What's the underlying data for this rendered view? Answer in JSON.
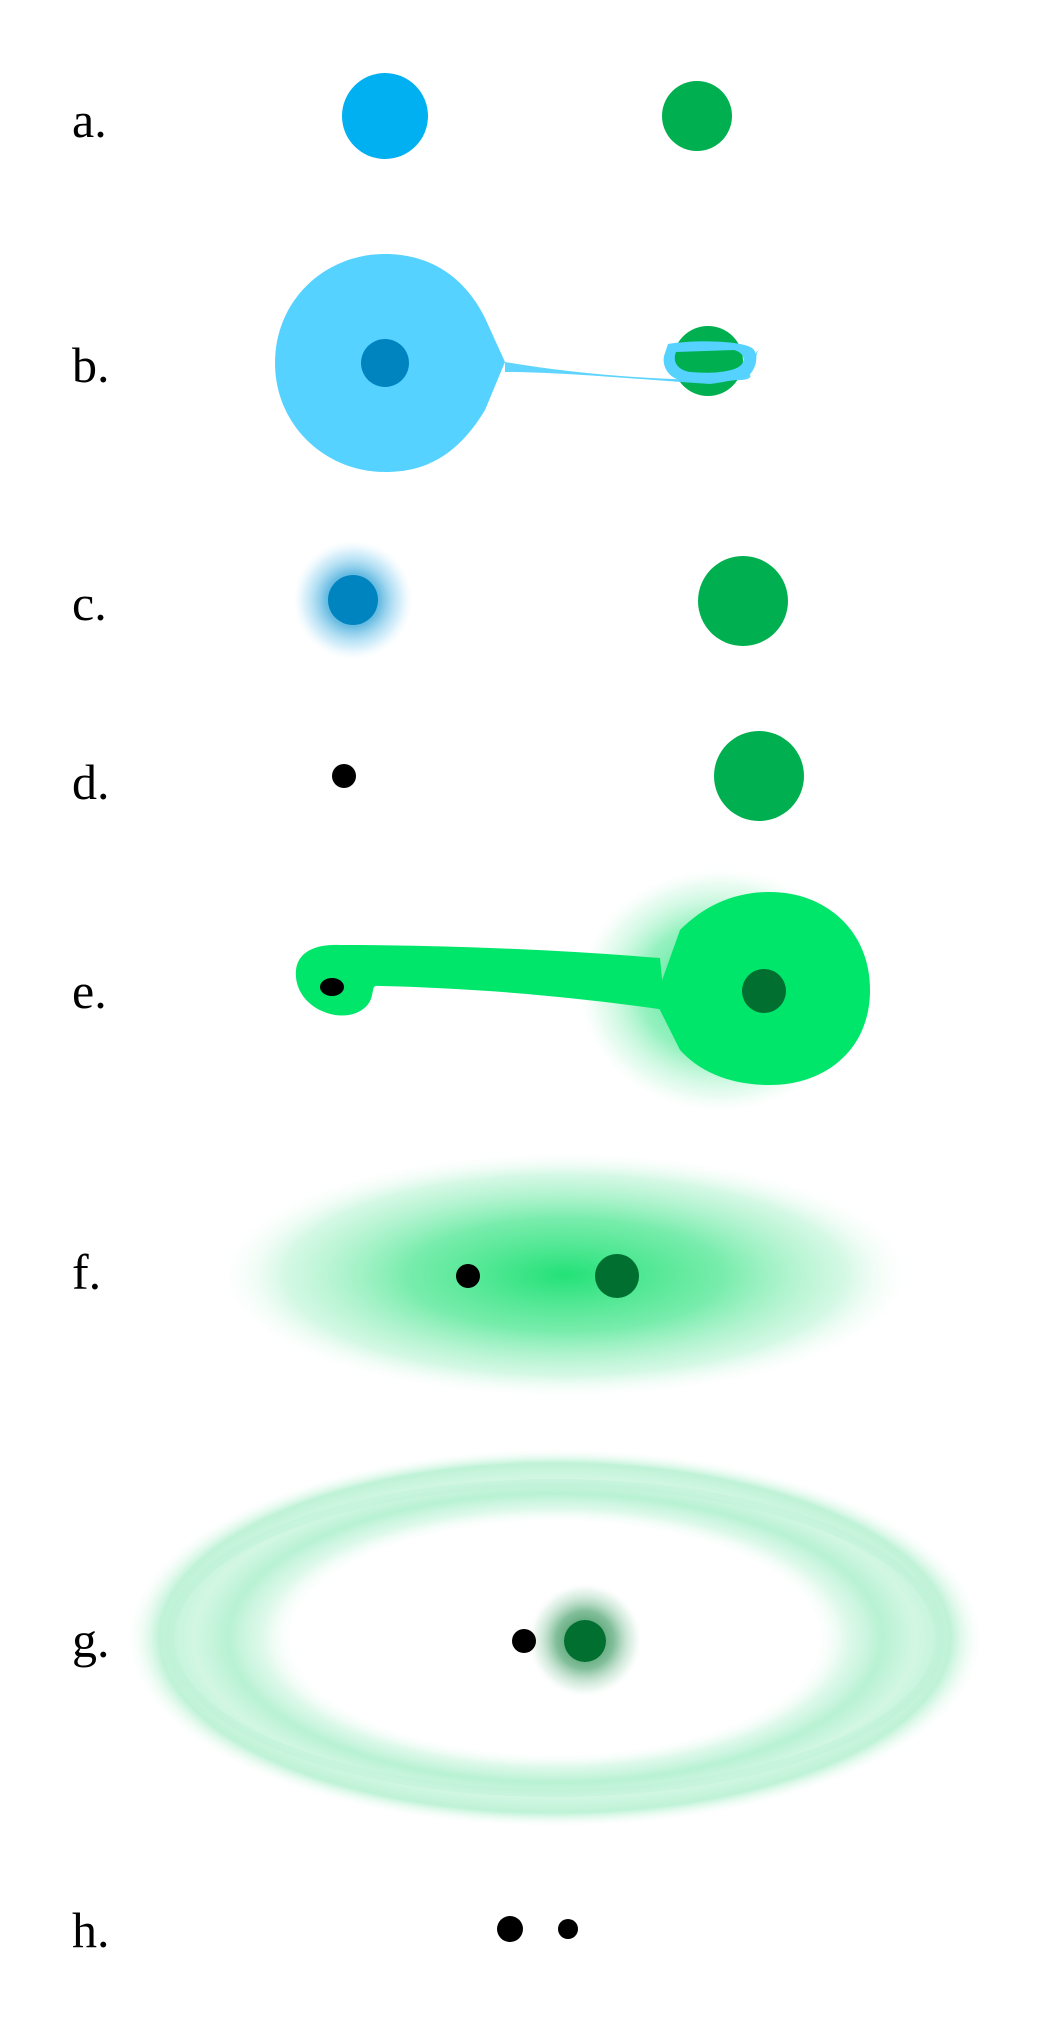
{
  "diagram": {
    "colors": {
      "blue_star": "#00b0f0",
      "blue_envelope": "#55d2ff",
      "blue_core": "#0084c0",
      "green_star": "#00b050",
      "green_envelope": "#00e66b",
      "green_core": "#006f30",
      "compact_object": "#000000",
      "disk_light": "#a7efc9"
    },
    "stages": [
      {
        "label": "a."
      },
      {
        "label": "b."
      },
      {
        "label": "c."
      },
      {
        "label": "d."
      },
      {
        "label": "e."
      },
      {
        "label": "f."
      },
      {
        "label": "g."
      },
      {
        "label": "h."
      }
    ]
  }
}
